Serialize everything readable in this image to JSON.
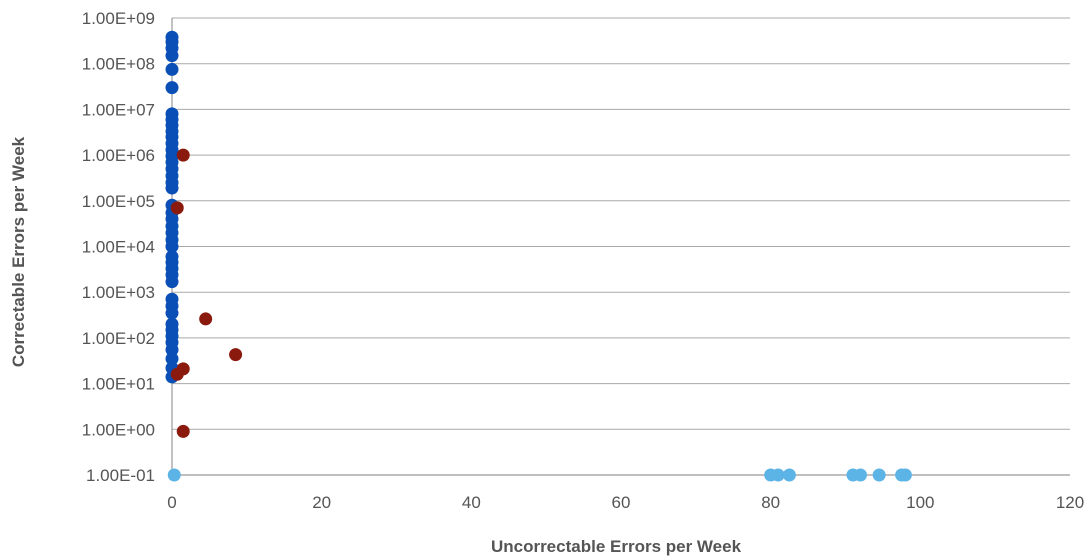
{
  "chart_data": {
    "type": "scatter",
    "title": "",
    "xlabel": "Uncorrectable Errors per Week",
    "ylabel": "Correctable Errors per Week",
    "x_scale": "linear",
    "y_scale": "log",
    "xlim": [
      0,
      120
    ],
    "ylim": [
      0.1,
      1000000000
    ],
    "x_ticks": [
      {
        "value": 0,
        "label": "0"
      },
      {
        "value": 20,
        "label": "20"
      },
      {
        "value": 40,
        "label": "40"
      },
      {
        "value": 60,
        "label": "60"
      },
      {
        "value": 80,
        "label": "80"
      },
      {
        "value": 100,
        "label": "100"
      },
      {
        "value": 120,
        "label": "120"
      }
    ],
    "y_ticks": [
      {
        "value": 0.1,
        "label": "1.00E-01"
      },
      {
        "value": 1,
        "label": "1.00E+00"
      },
      {
        "value": 10,
        "label": "1.00E+01"
      },
      {
        "value": 100,
        "label": "1.00E+02"
      },
      {
        "value": 1000,
        "label": "1.00E+03"
      },
      {
        "value": 10000,
        "label": "1.00E+04"
      },
      {
        "value": 100000,
        "label": "1.00E+05"
      },
      {
        "value": 1000000,
        "label": "1.00E+06"
      },
      {
        "value": 10000000,
        "label": "1.00E+07"
      },
      {
        "value": 100000000,
        "label": "1.00E+08"
      },
      {
        "value": 1000000000,
        "label": "1.00E+09"
      }
    ],
    "grid": "horizontal",
    "legend": "none",
    "series": [
      {
        "color": "#0a4fb5",
        "points": [
          [
            0,
            380000000
          ],
          [
            0,
            300000000
          ],
          [
            0,
            220000000
          ],
          [
            0,
            150000000
          ],
          [
            0,
            75000000
          ],
          [
            0,
            30000000
          ],
          [
            0,
            8000000
          ],
          [
            0,
            6000000
          ],
          [
            0,
            4500000
          ],
          [
            0,
            3300000
          ],
          [
            0,
            2500000
          ],
          [
            0,
            1800000
          ],
          [
            0,
            1300000
          ],
          [
            0,
            950000
          ],
          [
            0,
            700000
          ],
          [
            0,
            500000
          ],
          [
            0,
            350000
          ],
          [
            0,
            250000
          ],
          [
            0,
            190000
          ],
          [
            0,
            80000
          ],
          [
            0,
            55000
          ],
          [
            0,
            40000
          ],
          [
            0,
            28000
          ],
          [
            0,
            20000
          ],
          [
            0,
            14000
          ],
          [
            0,
            10000
          ],
          [
            0,
            6000
          ],
          [
            0,
            4500
          ],
          [
            0,
            3300
          ],
          [
            0,
            2400
          ],
          [
            0,
            1700
          ],
          [
            0,
            700
          ],
          [
            0,
            500
          ],
          [
            0,
            350
          ],
          [
            0,
            200
          ],
          [
            0,
            150
          ],
          [
            0,
            110
          ],
          [
            0,
            80
          ],
          [
            0,
            55
          ],
          [
            0,
            35
          ],
          [
            0,
            22
          ],
          [
            0,
            14
          ]
        ]
      },
      {
        "color": "#8b1a0e",
        "points": [
          [
            1.5,
            1000000
          ],
          [
            0.7,
            70000
          ],
          [
            4.5,
            260
          ],
          [
            8.5,
            43
          ],
          [
            1.5,
            21
          ],
          [
            0.7,
            16
          ],
          [
            1.5,
            0.9
          ]
        ]
      },
      {
        "color": "#5cb3e6",
        "points": [
          [
            0.3,
            0.1
          ],
          [
            80,
            0.1
          ],
          [
            81,
            0.1
          ],
          [
            82.5,
            0.1
          ],
          [
            91,
            0.1
          ],
          [
            92,
            0.1
          ],
          [
            94.5,
            0.1
          ],
          [
            97.5,
            0.1
          ],
          [
            98,
            0.1
          ]
        ]
      }
    ]
  }
}
